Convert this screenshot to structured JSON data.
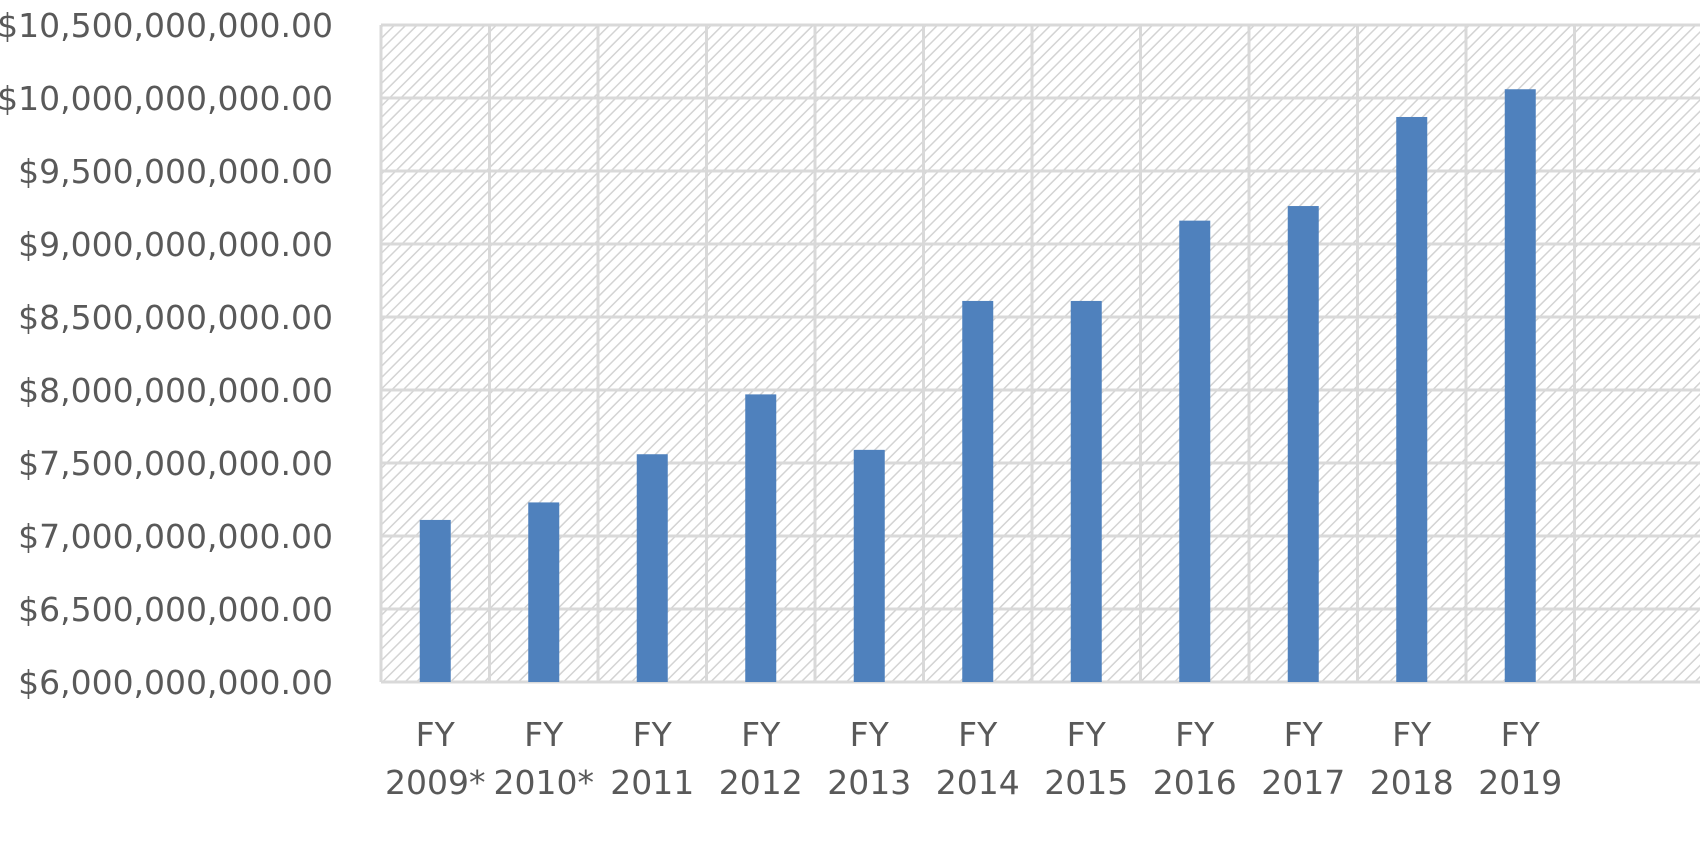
{
  "chart_data": {
    "type": "bar",
    "title": "",
    "xlabel": "",
    "ylabel": "",
    "categories": [
      [
        "FY",
        "2009*"
      ],
      [
        "FY",
        "2010*"
      ],
      [
        "FY",
        "2011"
      ],
      [
        "FY",
        "2012"
      ],
      [
        "FY",
        "2013"
      ],
      [
        "FY",
        "2014"
      ],
      [
        "FY",
        "2015"
      ],
      [
        "FY",
        "2016"
      ],
      [
        "FY",
        "2017"
      ],
      [
        "FY",
        "2018"
      ],
      [
        "FY",
        "2019"
      ]
    ],
    "series": [
      {
        "values": [
          7110000000,
          7230000000,
          7560000000,
          7970000000,
          7590000000,
          8610000000,
          8610000000,
          9160000000,
          9260000000,
          9870000000,
          10060000000
        ]
      }
    ],
    "ylim": [
      6000000000,
      10500000000
    ],
    "yticks": [
      6000000000,
      6500000000,
      7000000000,
      7500000000,
      8000000000,
      8500000000,
      9000000000,
      9500000000,
      10000000000,
      10500000000
    ],
    "ytick_labels": [
      "$6,000,000,000.00",
      "$6,500,000,000.00",
      "$7,000,000,000.00",
      "$7,500,000,000.00",
      "$8,000,000,000.00",
      "$8,500,000,000.00",
      "$9,000,000,000.00",
      "$9,500,000,000.00",
      "$10,000,000,000.00",
      "$10,500,000,000.00"
    ],
    "grid": true,
    "legend": "none",
    "colors": {
      "bar": "#4f81bd",
      "grid": "#d9d9d9",
      "hatch": "#d0d0d0",
      "tick_text": "#595959"
    }
  }
}
